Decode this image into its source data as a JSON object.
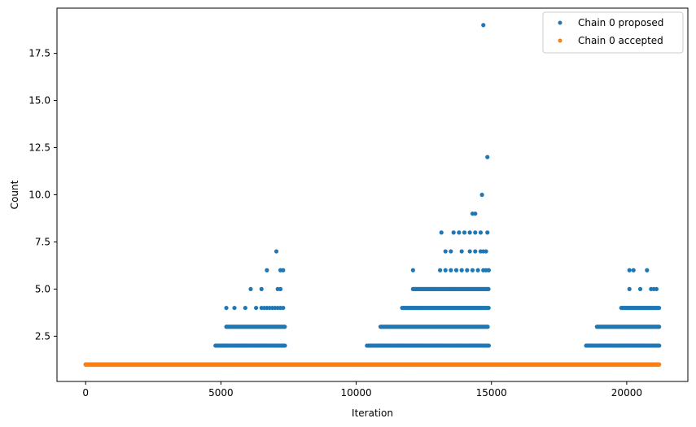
{
  "chart_data": {
    "type": "scatter",
    "title": "",
    "xlabel": "Iteration",
    "ylabel": "Count",
    "xlim": [
      -1060,
      22260
    ],
    "ylim": [
      0.1,
      19.9
    ],
    "x_ticks": [
      0,
      5000,
      10000,
      15000,
      20000
    ],
    "x_tick_labels": [
      "0",
      "5000",
      "10000",
      "15000",
      "20000"
    ],
    "y_ticks": [
      2.5,
      5.0,
      7.5,
      10.0,
      12.5,
      15.0,
      17.5
    ],
    "y_tick_labels": [
      "2.5",
      "5.0",
      "7.5",
      "10.0",
      "12.5",
      "15.0",
      "17.5"
    ],
    "grid": false,
    "legend": {
      "placement": "top-right"
    },
    "series": [
      {
        "name": "Chain 0 proposed",
        "color": "#1f77b4",
        "sampled_region_points": [
          {
            "x_range": [
              0,
              21200
            ],
            "y": 1
          },
          {
            "x_range": [
              4800,
              7400
            ],
            "y": 2
          },
          {
            "x_range": [
              5200,
              7400
            ],
            "y": 3
          },
          {
            "x_range": [
              10400,
              14900
            ],
            "y": 2
          },
          {
            "x_range": [
              10900,
              14900
            ],
            "y": 3
          },
          {
            "x_range": [
              11700,
              14900
            ],
            "y": 4
          },
          {
            "x_range": [
              12100,
              14900
            ],
            "y": 5
          },
          {
            "x_range": [
              18500,
              21200
            ],
            "y": 2
          },
          {
            "x_range": [
              18900,
              21200
            ],
            "y": 3
          },
          {
            "x_range": [
              19800,
              21200
            ],
            "y": 4
          }
        ],
        "points": [
          {
            "x": 5200,
            "y": 4
          },
          {
            "x": 5500,
            "y": 4
          },
          {
            "x": 5900,
            "y": 4
          },
          {
            "x": 6300,
            "y": 4
          },
          {
            "x": 6500,
            "y": 4
          },
          {
            "x": 6600,
            "y": 4
          },
          {
            "x": 6700,
            "y": 4
          },
          {
            "x": 6800,
            "y": 4
          },
          {
            "x": 6900,
            "y": 4
          },
          {
            "x": 7000,
            "y": 4
          },
          {
            "x": 7100,
            "y": 4
          },
          {
            "x": 7200,
            "y": 4
          },
          {
            "x": 7300,
            "y": 4
          },
          {
            "x": 6100,
            "y": 5
          },
          {
            "x": 6500,
            "y": 5
          },
          {
            "x": 7100,
            "y": 5
          },
          {
            "x": 7200,
            "y": 5
          },
          {
            "x": 6700,
            "y": 6
          },
          {
            "x": 7200,
            "y": 6
          },
          {
            "x": 7300,
            "y": 6
          },
          {
            "x": 7050,
            "y": 7
          },
          {
            "x": 12100,
            "y": 6
          },
          {
            "x": 13100,
            "y": 6
          },
          {
            "x": 13300,
            "y": 6
          },
          {
            "x": 13500,
            "y": 6
          },
          {
            "x": 13700,
            "y": 6
          },
          {
            "x": 13900,
            "y": 6
          },
          {
            "x": 14100,
            "y": 6
          },
          {
            "x": 14300,
            "y": 6
          },
          {
            "x": 14500,
            "y": 6
          },
          {
            "x": 14700,
            "y": 6
          },
          {
            "x": 14800,
            "y": 6
          },
          {
            "x": 14900,
            "y": 6
          },
          {
            "x": 13300,
            "y": 7
          },
          {
            "x": 13500,
            "y": 7
          },
          {
            "x": 13900,
            "y": 7
          },
          {
            "x": 14200,
            "y": 7
          },
          {
            "x": 14400,
            "y": 7
          },
          {
            "x": 14600,
            "y": 7
          },
          {
            "x": 14700,
            "y": 7
          },
          {
            "x": 14800,
            "y": 7
          },
          {
            "x": 13150,
            "y": 8
          },
          {
            "x": 13600,
            "y": 8
          },
          {
            "x": 13800,
            "y": 8
          },
          {
            "x": 14000,
            "y": 8
          },
          {
            "x": 14200,
            "y": 8
          },
          {
            "x": 14400,
            "y": 8
          },
          {
            "x": 14600,
            "y": 8
          },
          {
            "x": 14850,
            "y": 8
          },
          {
            "x": 14300,
            "y": 9
          },
          {
            "x": 14400,
            "y": 9
          },
          {
            "x": 14650,
            "y": 10
          },
          {
            "x": 14850,
            "y": 12
          },
          {
            "x": 14700,
            "y": 19
          },
          {
            "x": 20100,
            "y": 5
          },
          {
            "x": 20500,
            "y": 5
          },
          {
            "x": 20900,
            "y": 5
          },
          {
            "x": 21000,
            "y": 5
          },
          {
            "x": 21100,
            "y": 5
          },
          {
            "x": 20100,
            "y": 6
          },
          {
            "x": 20250,
            "y": 6
          },
          {
            "x": 20750,
            "y": 6
          }
        ]
      },
      {
        "name": "Chain 0 accepted",
        "color": "#ff7f0e",
        "sampled_region_points": [
          {
            "x_range": [
              0,
              21200
            ],
            "y": 1
          }
        ],
        "points": []
      }
    ]
  }
}
